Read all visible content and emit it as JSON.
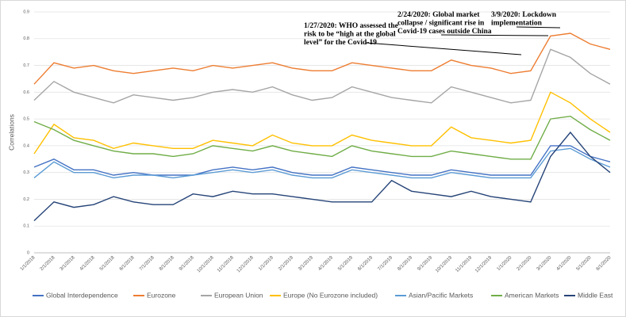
{
  "chart_data": {
    "type": "line",
    "y_label": "Correlations",
    "categories": [
      "1/1/2018",
      "2/1/2018",
      "3/1/2018",
      "4/1/2018",
      "5/1/2018",
      "6/1/2018",
      "7/1/2018",
      "8/1/2018",
      "9/1/2018",
      "10/1/2018",
      "11/1/2018",
      "12/1/2018",
      "1/1/2019",
      "2/1/2019",
      "3/1/2019",
      "4/1/2019",
      "5/1/2019",
      "6/1/2019",
      "7/1/2019",
      "8/1/2019",
      "9/1/2019",
      "10/1/2019",
      "11/1/2019",
      "12/1/2019",
      "1/1/2020",
      "2/1/2020",
      "3/1/2020",
      "4/1/2020",
      "5/1/2020",
      "6/1/2020"
    ],
    "ylim": [
      0,
      0.9
    ],
    "yticks": [
      0,
      0.1,
      0.2,
      0.3,
      0.4,
      0.5,
      0.6,
      0.7,
      0.8,
      0.9
    ],
    "grid": true,
    "legend": "bottom",
    "series": [
      {
        "name": "Global Interdependence",
        "color": "#4472c4",
        "values": [
          0.32,
          0.35,
          0.31,
          0.31,
          0.29,
          0.3,
          0.29,
          0.29,
          0.29,
          0.31,
          0.32,
          0.31,
          0.32,
          0.3,
          0.29,
          0.29,
          0.32,
          0.31,
          0.3,
          0.29,
          0.29,
          0.31,
          0.3,
          0.29,
          0.29,
          0.29,
          0.4,
          0.4,
          0.36,
          0.34
        ]
      },
      {
        "name": "Eurozone",
        "color": "#ed7d31",
        "values": [
          0.63,
          0.71,
          0.69,
          0.7,
          0.68,
          0.67,
          0.68,
          0.69,
          0.68,
          0.7,
          0.69,
          0.7,
          0.71,
          0.69,
          0.68,
          0.68,
          0.71,
          0.7,
          0.69,
          0.68,
          0.68,
          0.72,
          0.7,
          0.69,
          0.67,
          0.68,
          0.81,
          0.82,
          0.78,
          0.76
        ]
      },
      {
        "name": "European Union",
        "color": "#a5a5a5",
        "values": [
          0.57,
          0.64,
          0.6,
          0.58,
          0.56,
          0.59,
          0.58,
          0.57,
          0.58,
          0.6,
          0.61,
          0.6,
          0.62,
          0.59,
          0.57,
          0.58,
          0.62,
          0.6,
          0.58,
          0.57,
          0.56,
          0.62,
          0.6,
          0.58,
          0.56,
          0.57,
          0.76,
          0.73,
          0.67,
          0.63
        ]
      },
      {
        "name": "Europe (No Eurozone included)",
        "color": "#ffc000",
        "values": [
          0.37,
          0.48,
          0.43,
          0.42,
          0.39,
          0.41,
          0.4,
          0.39,
          0.39,
          0.42,
          0.41,
          0.4,
          0.44,
          0.41,
          0.4,
          0.4,
          0.44,
          0.42,
          0.41,
          0.4,
          0.4,
          0.47,
          0.43,
          0.42,
          0.41,
          0.42,
          0.6,
          0.56,
          0.5,
          0.45
        ]
      },
      {
        "name": "Asian/Pacific Markets",
        "color": "#5b9bd5",
        "values": [
          0.28,
          0.34,
          0.3,
          0.3,
          0.28,
          0.29,
          0.29,
          0.28,
          0.29,
          0.3,
          0.31,
          0.3,
          0.31,
          0.29,
          0.28,
          0.28,
          0.31,
          0.3,
          0.29,
          0.28,
          0.28,
          0.3,
          0.29,
          0.28,
          0.28,
          0.28,
          0.38,
          0.39,
          0.35,
          0.32
        ]
      },
      {
        "name": "American Markets",
        "color": "#70ad47",
        "values": [
          0.49,
          0.46,
          0.42,
          0.4,
          0.38,
          0.37,
          0.37,
          0.36,
          0.37,
          0.4,
          0.39,
          0.38,
          0.4,
          0.38,
          0.37,
          0.36,
          0.4,
          0.38,
          0.37,
          0.36,
          0.36,
          0.38,
          0.37,
          0.36,
          0.35,
          0.35,
          0.5,
          0.51,
          0.46,
          0.42
        ]
      },
      {
        "name": "Middle East",
        "color": "#264478",
        "values": [
          0.12,
          0.19,
          0.17,
          0.18,
          0.21,
          0.19,
          0.18,
          0.18,
          0.22,
          0.21,
          0.23,
          0.22,
          0.22,
          0.21,
          0.2,
          0.19,
          0.19,
          0.19,
          0.27,
          0.23,
          0.22,
          0.21,
          0.23,
          0.21,
          0.2,
          0.19,
          0.36,
          0.45,
          0.36,
          0.3
        ]
      }
    ],
    "annotations": [
      [
        "1/27/2020: WHO assessed the",
        "risk to be “high at the global",
        "level” for the Covid-19"
      ],
      [
        "2/24/2020: Global market",
        "collapse / significant rise in",
        "Covid-19 cases outside China"
      ],
      [
        "3/9/2020: Lockdown",
        "implementation"
      ]
    ]
  }
}
